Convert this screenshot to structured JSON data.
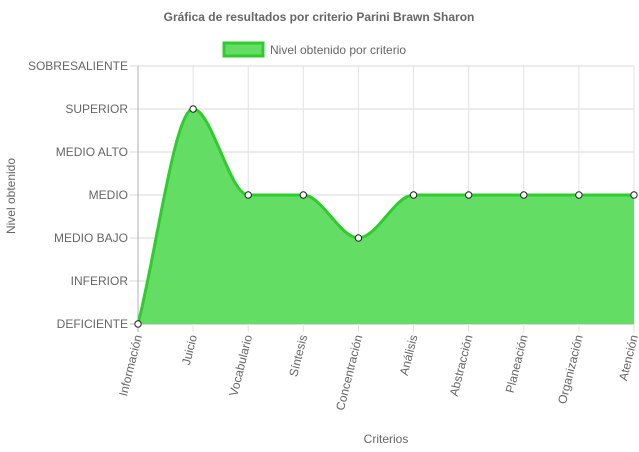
{
  "chart_data": {
    "type": "area",
    "title": "Gráfica de resultados por criterio Parini Brawn Sharon",
    "xlabel": "Criterios",
    "ylabel": "Nivel obtenido",
    "categories": [
      "Información",
      "Juicio",
      "Vocabulario",
      "Síntesis",
      "Concentración",
      "Análisis",
      "Abstracción",
      "Planeación",
      "Organización",
      "Atención"
    ],
    "y_levels": [
      "DEFICIENTE",
      "INFERIOR",
      "MEDIO BAJO",
      "MEDIO",
      "MEDIO ALTO",
      "SUPERIOR",
      "SOBRESALIENTE"
    ],
    "ylim": [
      0,
      6
    ],
    "grid": true,
    "legend_position": "top",
    "series": [
      {
        "name": "Nivel obtenido por criterio",
        "values": [
          0,
          5,
          3,
          3,
          2,
          3,
          3,
          3,
          3,
          3
        ],
        "line_color": "#2ecc2e",
        "fill_color": "#64dd64"
      }
    ]
  }
}
